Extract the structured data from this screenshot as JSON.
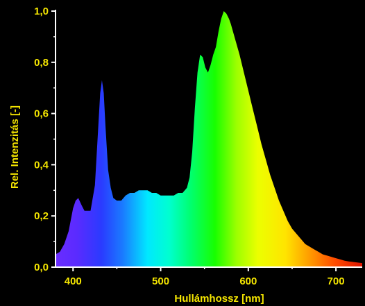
{
  "chart_data": {
    "type": "area",
    "xlabel": "Hullámhossz [nm]",
    "ylabel": "Rel. Intenzitás [-]",
    "xlim": [
      380,
      730
    ],
    "ylim": [
      0,
      1.0
    ],
    "x_ticks": [
      400,
      500,
      600,
      700
    ],
    "y_ticks": [
      0,
      0.2,
      0.4,
      0.6,
      0.8,
      1.0
    ],
    "x_tick_labels": [
      "400",
      "500",
      "600",
      "700"
    ],
    "y_tick_labels": [
      "0,0",
      "0,2",
      "0,4",
      "0,6",
      "0,8",
      "1,0"
    ],
    "grid": false,
    "legend": "none",
    "fill": "visible spectrum color gradient",
    "series": [
      {
        "x": [
          380,
          385,
          390,
          395,
          400,
          403,
          406,
          410,
          413,
          416,
          420,
          425,
          428,
          431,
          433,
          435,
          437,
          440,
          443,
          446,
          450,
          455,
          460,
          465,
          470,
          475,
          480,
          485,
          490,
          495,
          500,
          505,
          510,
          515,
          520,
          525,
          530,
          533,
          536,
          539,
          542,
          545,
          548,
          551,
          554,
          557,
          560,
          563,
          566,
          569,
          572,
          575,
          578,
          580,
          585,
          590,
          595,
          600,
          605,
          610,
          615,
          620,
          625,
          630,
          635,
          640,
          645,
          650,
          655,
          660,
          665,
          670,
          675,
          680,
          685,
          690,
          695,
          700,
          705,
          710,
          715,
          720,
          725,
          730
        ],
        "y": [
          0.05,
          0.06,
          0.09,
          0.14,
          0.23,
          0.26,
          0.27,
          0.24,
          0.22,
          0.22,
          0.22,
          0.32,
          0.5,
          0.68,
          0.73,
          0.68,
          0.55,
          0.38,
          0.31,
          0.27,
          0.26,
          0.26,
          0.28,
          0.29,
          0.29,
          0.3,
          0.3,
          0.3,
          0.29,
          0.29,
          0.28,
          0.28,
          0.28,
          0.28,
          0.29,
          0.29,
          0.31,
          0.35,
          0.45,
          0.62,
          0.76,
          0.83,
          0.82,
          0.78,
          0.76,
          0.79,
          0.83,
          0.86,
          0.92,
          0.97,
          1.0,
          0.99,
          0.97,
          0.95,
          0.89,
          0.83,
          0.76,
          0.69,
          0.62,
          0.55,
          0.48,
          0.42,
          0.36,
          0.31,
          0.26,
          0.22,
          0.18,
          0.15,
          0.13,
          0.11,
          0.09,
          0.08,
          0.07,
          0.06,
          0.05,
          0.045,
          0.04,
          0.035,
          0.03,
          0.025,
          0.022,
          0.02,
          0.018,
          0.016
        ]
      }
    ]
  }
}
